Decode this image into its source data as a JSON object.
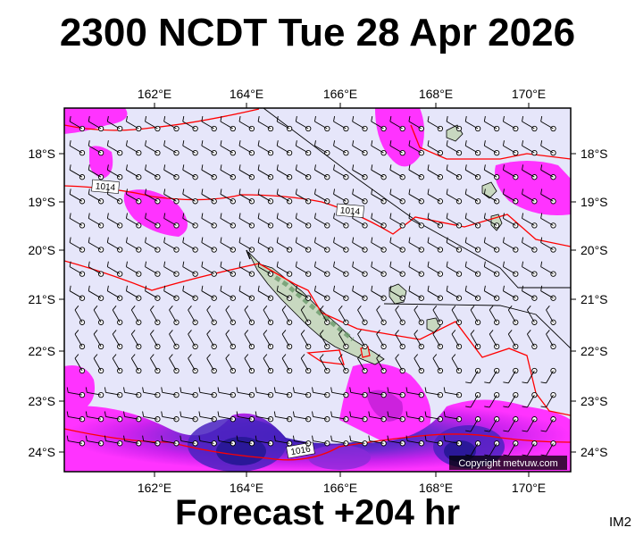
{
  "title": "2300 NCDT Tue 28 Apr 2026",
  "footer": "Forecast +204 hr",
  "code": "IM2",
  "copyright": "Copyright metvuw.com",
  "longitude_labels": [
    "162°E",
    "164°E",
    "166°E",
    "168°E",
    "170°E"
  ],
  "latitude_labels": [
    "18°S",
    "19°S",
    "20°S",
    "21°S",
    "22°S",
    "23°S",
    "24°S"
  ],
  "isobar_labels": [
    "1014",
    "1014",
    "1016"
  ],
  "colors": {
    "sea": "#e6e6fa",
    "land": "#c8d8c0",
    "rain_light": "#ff33ff",
    "rain_medium": "#cc22dd",
    "rain_heavy": "#3322bb",
    "isobar": "#ff0000"
  }
}
